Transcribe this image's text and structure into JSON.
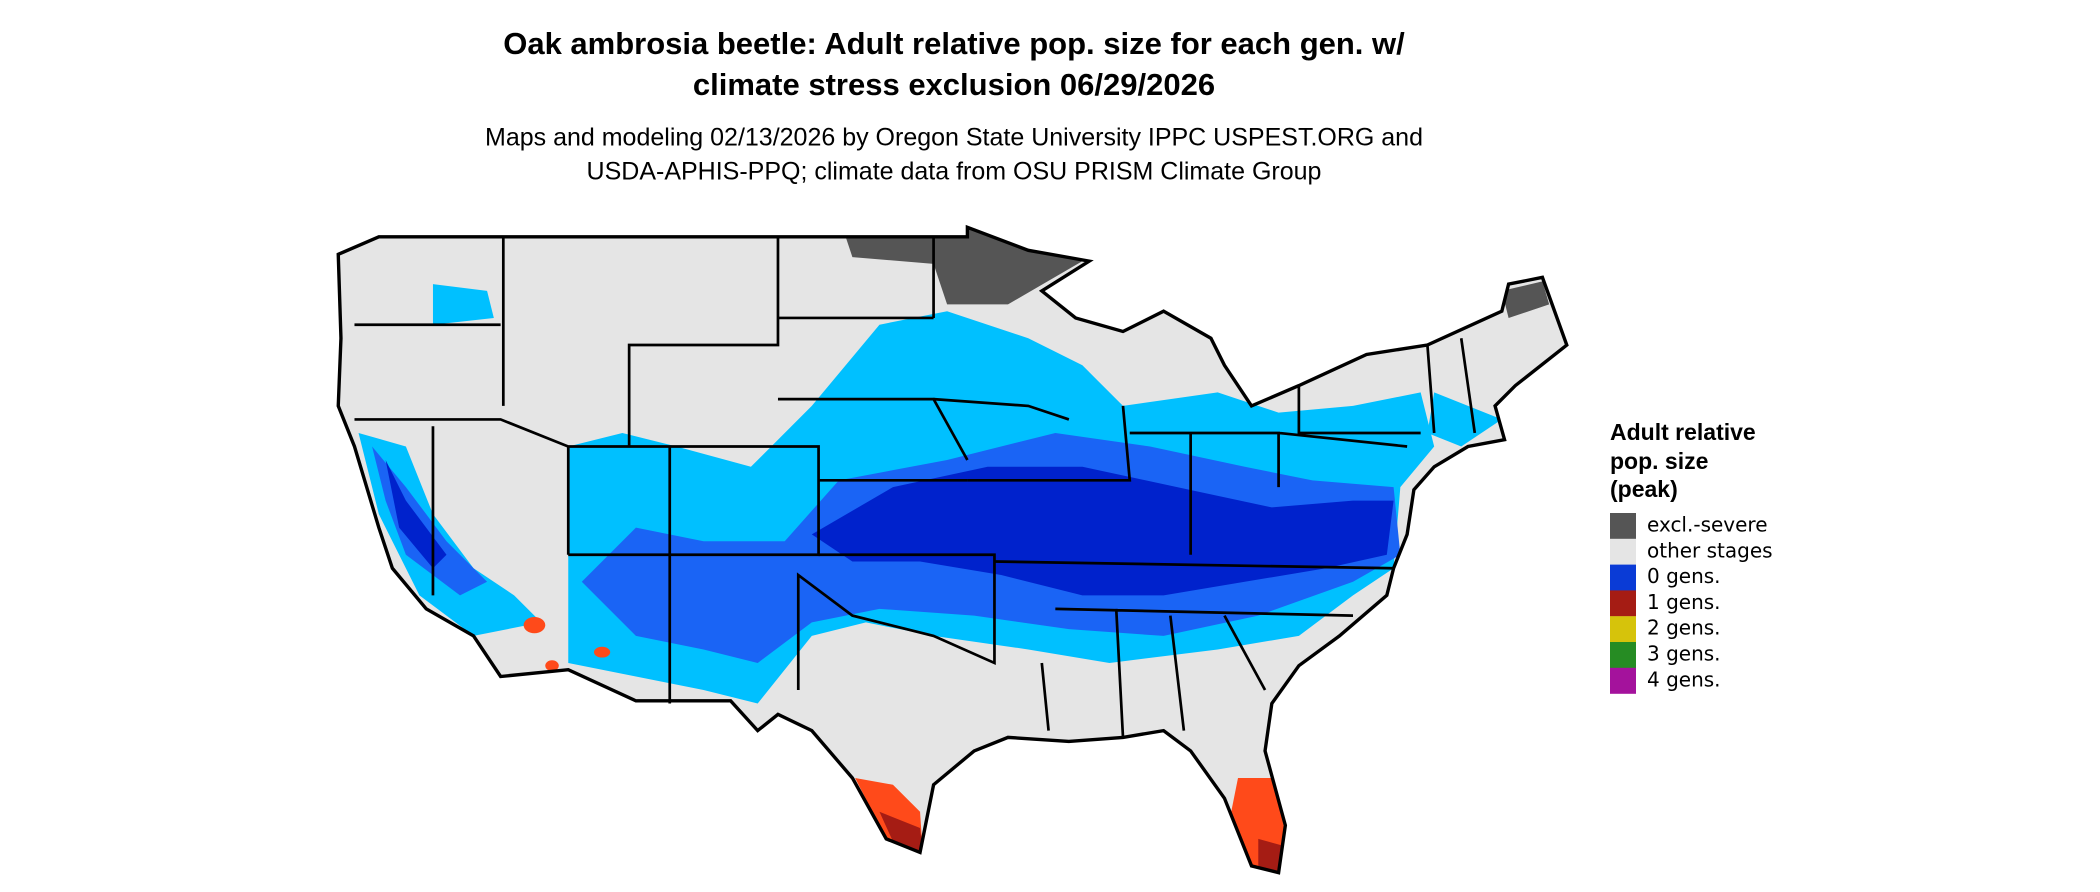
{
  "header": {
    "title": [
      "Oak ambrosia beetle: Adult relative pop. size for each gen. w/",
      "climate stress exclusion 06/29/2026"
    ],
    "subtitle": [
      "Maps and modeling 02/13/2026 by Oregon State University IPPC USPEST.ORG and",
      "USDA-APHIS-PPQ; climate data from OSU PRISM Climate Group"
    ]
  },
  "legend": {
    "title": [
      "Adult relative",
      "pop. size",
      "(peak)"
    ],
    "items": [
      {
        "label": "excl.-severe",
        "color": "#555555"
      },
      {
        "label": "other stages",
        "color": "#e5e5e5"
      },
      {
        "label": "0 gens.",
        "color": "#0a3bd6"
      },
      {
        "label": "1 gens.",
        "color": "#a51c14"
      },
      {
        "label": "2 gens.",
        "color": "#d6c30b"
      },
      {
        "label": "3 gens.",
        "color": "#268c23"
      },
      {
        "label": "4 gens.",
        "color": "#a4129c"
      }
    ]
  }
}
